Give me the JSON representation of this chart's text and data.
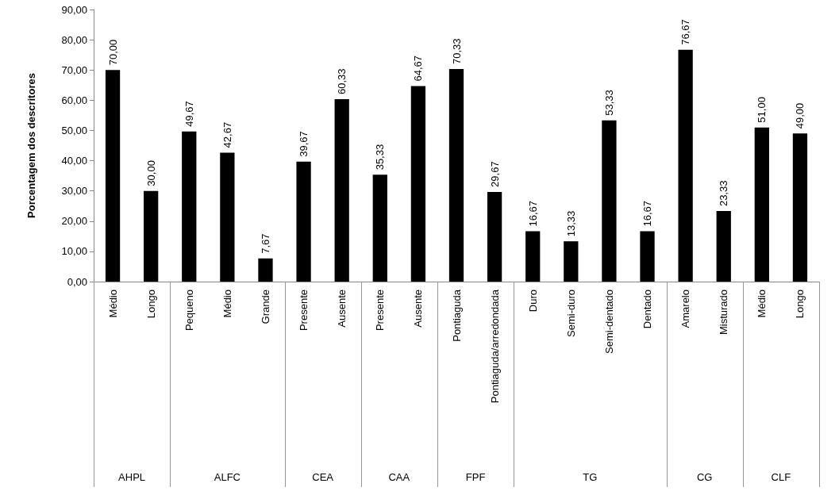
{
  "chart_data": {
    "type": "bar",
    "ylabel": "Porcentagem dos descritores",
    "categories": [
      "Médio",
      "Longo",
      "Pequeno",
      "Médio",
      "Grande",
      "Presente",
      "Ausente",
      "Presente",
      "Ausente",
      "Pontiaguda",
      "Pontiaguda/arredondada",
      "Duro",
      "Semi-duro",
      "Semi-dentado",
      "Dentado",
      "Amarelo",
      "Misturado",
      "Médio",
      "Longo"
    ],
    "values": [
      70.0,
      30.0,
      49.67,
      42.67,
      7.67,
      39.67,
      60.33,
      35.33,
      64.67,
      70.33,
      29.67,
      16.67,
      13.33,
      53.33,
      16.67,
      76.67,
      23.33,
      51.0,
      49.0
    ],
    "value_labels": [
      "70,00",
      "30,00",
      "49,67",
      "42,67",
      "7,67",
      "39,67",
      "60,33",
      "35,33",
      "64,67",
      "70,33",
      "29,67",
      "16,67",
      "13,33",
      "53,33",
      "16,67",
      "76,67",
      "23,33",
      "51,00",
      "49,00"
    ],
    "color": "#000000",
    "ylim": [
      0,
      90
    ],
    "yticks": [
      {
        "value": 0,
        "label": "0,00"
      },
      {
        "value": 10,
        "label": "10,00"
      },
      {
        "value": 20,
        "label": "20,00"
      },
      {
        "value": 30,
        "label": "30,00"
      },
      {
        "value": 40,
        "label": "40,00"
      },
      {
        "value": 50,
        "label": "50,00"
      },
      {
        "value": 60,
        "label": "60,00"
      },
      {
        "value": 70,
        "label": "70,00"
      },
      {
        "value": 80,
        "label": "80,00"
      },
      {
        "value": 90,
        "label": "90,00"
      }
    ],
    "annotations": [
      "AHPL",
      "ALFC",
      "CEA",
      "CAA",
      "FPF",
      "TG",
      "CG",
      "CLF"
    ],
    "grid": false
  }
}
